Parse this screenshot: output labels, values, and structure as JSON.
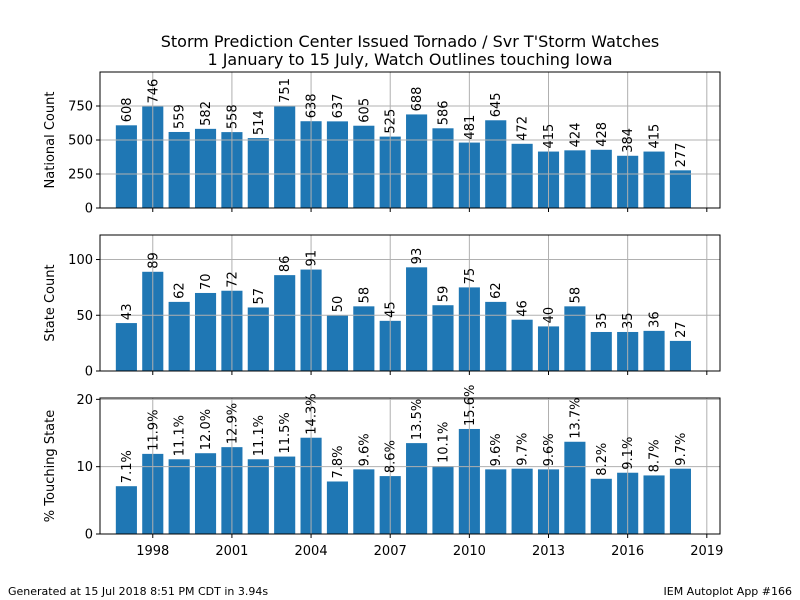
{
  "title_line1": "Storm Prediction Center Issued Tornado / Svr T'Storm Watches",
  "title_line2": "1 January to 15 July, Watch Outlines touching Iowa",
  "footer_left": "Generated at 15 Jul 2018 8:51 PM CDT in 3.94s",
  "footer_right": "IEM Autoplot App #166",
  "colors": {
    "bar": "#1f77b4",
    "grid": "#b0b0b0"
  },
  "chart_data": {
    "type": "bar",
    "x": [
      1997,
      1998,
      1999,
      2000,
      2001,
      2002,
      2003,
      2004,
      2005,
      2006,
      2007,
      2008,
      2009,
      2010,
      2011,
      2012,
      2013,
      2014,
      2015,
      2016,
      2017,
      2018
    ],
    "xticks": [
      1998,
      2001,
      2004,
      2007,
      2010,
      2013,
      2016,
      2019
    ],
    "xlim": [
      1996,
      2019.5
    ],
    "grid": true,
    "panels": [
      {
        "ylabel": "National Count",
        "ylim": [
          0,
          1000
        ],
        "yticks": [
          0,
          250,
          500,
          750
        ],
        "values": [
          608,
          746,
          559,
          582,
          558,
          514,
          751,
          638,
          637,
          605,
          525,
          688,
          586,
          481,
          645,
          472,
          415,
          424,
          428,
          384,
          415,
          277
        ],
        "labels": [
          "608",
          "746",
          "559",
          "582",
          "558",
          "514",
          "751",
          "638",
          "637",
          "605",
          "525",
          "688",
          "586",
          "481",
          "645",
          "472",
          "415",
          "424",
          "428",
          "384",
          "415",
          "277"
        ]
      },
      {
        "ylabel": "State Count",
        "ylim": [
          0,
          122
        ],
        "yticks": [
          0,
          50,
          100
        ],
        "values": [
          43,
          89,
          62,
          70,
          72,
          57,
          86,
          91,
          50,
          58,
          45,
          93,
          59,
          75,
          62,
          46,
          40,
          58,
          35,
          35,
          36,
          27
        ],
        "labels": [
          "43",
          "89",
          "62",
          "70",
          "72",
          "57",
          "86",
          "91",
          "50",
          "58",
          "45",
          "93",
          "59",
          "75",
          "62",
          "46",
          "40",
          "58",
          "35",
          "35",
          "36",
          "27"
        ]
      },
      {
        "ylabel": "% Touching State",
        "ylim": [
          0,
          20.2
        ],
        "yticks": [
          0,
          10,
          20
        ],
        "values": [
          7.1,
          11.9,
          11.1,
          12.0,
          12.9,
          11.1,
          11.5,
          14.3,
          7.8,
          9.6,
          8.6,
          13.5,
          10.1,
          15.6,
          9.6,
          9.7,
          9.6,
          13.7,
          8.2,
          9.1,
          8.7,
          9.7
        ],
        "labels": [
          "7.1%",
          "11.9%",
          "11.1%",
          "12.0%",
          "12.9%",
          "11.1%",
          "11.5%",
          "14.3%",
          "7.8%",
          "9.6%",
          "8.6%",
          "13.5%",
          "10.1%",
          "15.6%",
          "9.6%",
          "9.7%",
          "9.6%",
          "13.7%",
          "8.2%",
          "9.1%",
          "8.7%",
          "9.7%"
        ]
      }
    ]
  }
}
